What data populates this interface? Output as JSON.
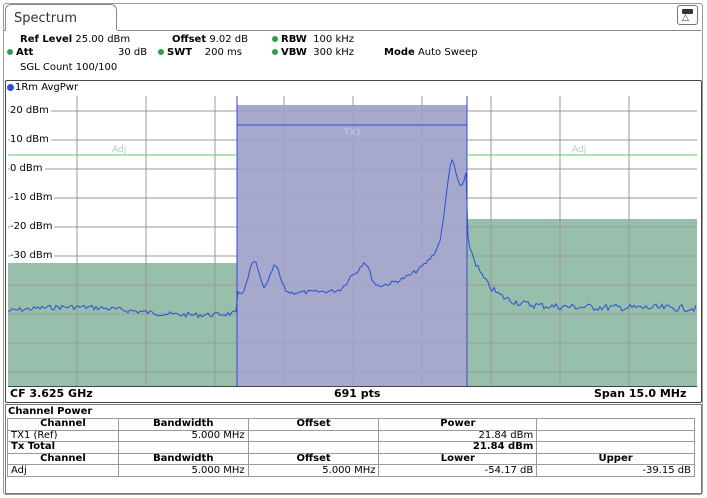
{
  "window": {
    "tab_title": "Spectrum"
  },
  "settings": {
    "ref_level_label": "Ref Level",
    "ref_level_value": "25.00 dBm",
    "offset_label": "Offset",
    "offset_value": "9.02 dB",
    "rbw_label": "RBW",
    "rbw_value": "100 kHz",
    "att_label": "Att",
    "att_value": "30 dB",
    "swt_label": "SWT",
    "swt_value": "200 ms",
    "vbw_label": "VBW",
    "vbw_value": "300 kHz",
    "mode_label": "Mode",
    "mode_value": "Auto Sweep",
    "sgl_count": "SGL Count 100/100",
    "indicator_color": "#2aa04a"
  },
  "trace": {
    "label": "1Rm AvgPwr",
    "color": "#2b4fcf"
  },
  "plot": {
    "y_labels": [
      "20 dBm",
      "10 dBm",
      "0 dBm",
      "-10 dBm",
      "-20 dBm",
      "-30 dBm"
    ],
    "tx_label": "TX1",
    "adj_left": "Adj",
    "adj_right": "Adj",
    "channel_fill": "#a0a2c8",
    "adj_fill": "#98bfab",
    "limit_line_color": "#7ed67e",
    "cf": "CF 3.625 GHz",
    "pts": "691 pts",
    "span": "Span 15.0 MHz"
  },
  "channel_power": {
    "title": "Channel Power",
    "header1": {
      "channel": "Channel",
      "bandwidth": "Bandwidth",
      "offset": "Offset",
      "power": "Power"
    },
    "row_tx1": {
      "channel": "TX1 (Ref)",
      "bandwidth": "5.000 MHz",
      "offset": "",
      "power": "21.84 dBm"
    },
    "row_total": {
      "channel": "Tx Total",
      "power": "21.84 dBm"
    },
    "header2": {
      "channel": "Channel",
      "bandwidth": "Bandwidth",
      "offset": "Offset",
      "lower": "Lower",
      "upper": "Upper"
    },
    "row_adj": {
      "channel": "Adj",
      "bandwidth": "5.000 MHz",
      "offset": "5.000 MHz",
      "lower": "-54.17 dB",
      "upper": "-39.15 dB"
    }
  }
}
